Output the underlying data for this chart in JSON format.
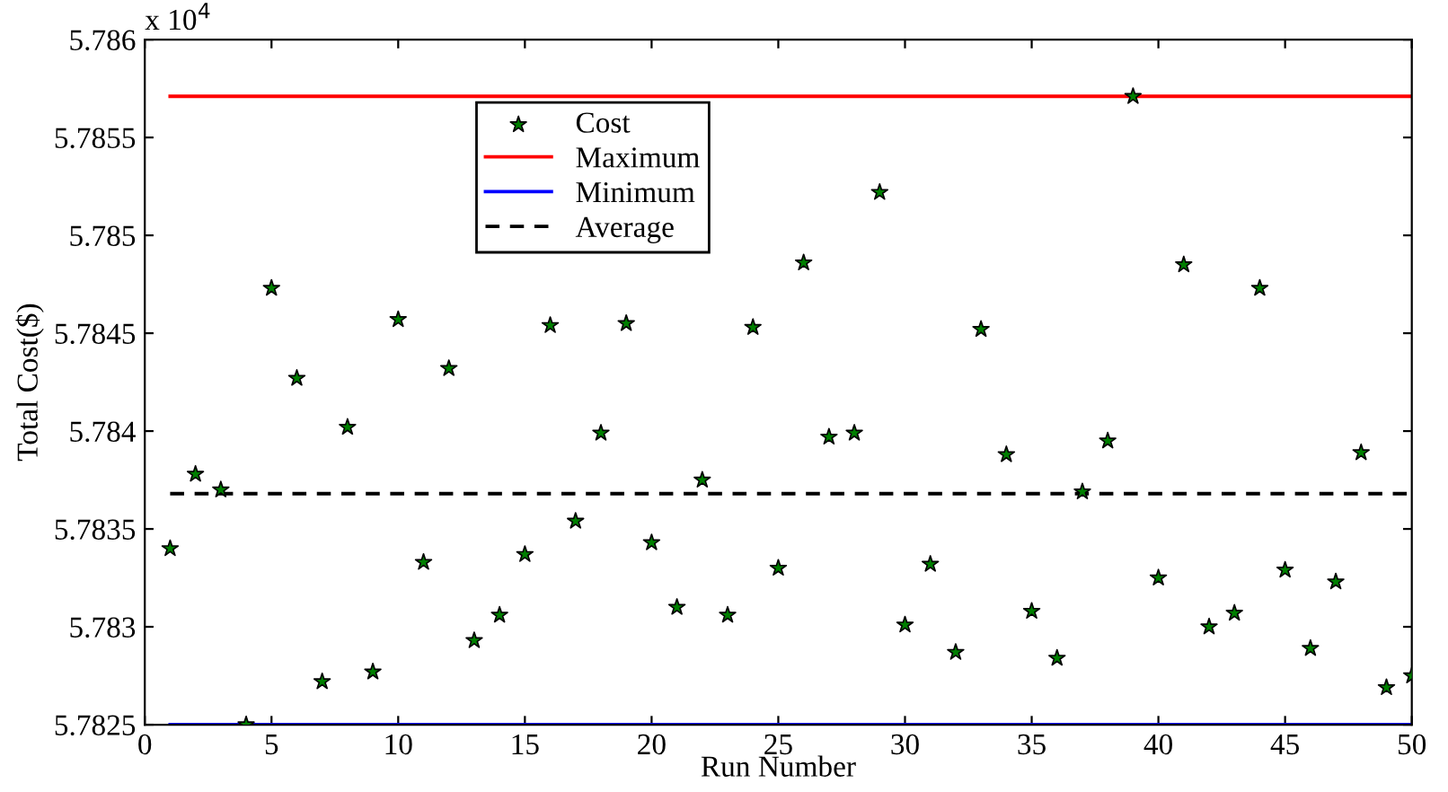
{
  "chart_data": {
    "type": "scatter",
    "xlabel": "Run Number",
    "ylabel": "Total Cost($)",
    "annotations": [
      "x 10$^{4}$"
    ],
    "xlim": [
      0,
      50
    ],
    "xticks": [
      0,
      5,
      10,
      15,
      20,
      25,
      30,
      35,
      40,
      45,
      50
    ],
    "ylim": [
      5.7825,
      5.786
    ],
    "yticks": [
      {
        "value": 5.7825,
        "label": "5.7825"
      },
      {
        "value": 5.783,
        "label": "5.783"
      },
      {
        "value": 5.7835,
        "label": "5.7835"
      },
      {
        "value": 5.784,
        "label": "5.784"
      },
      {
        "value": 5.7845,
        "label": "5.7845"
      },
      {
        "value": 5.785,
        "label": "5.785"
      },
      {
        "value": 5.7855,
        "label": "5.7855"
      },
      {
        "value": 5.786,
        "label": "5.786"
      }
    ],
    "grid": false,
    "legend": "top left",
    "series": [
      {
        "name": "Cost",
        "marker": "star",
        "color": "#007f00",
        "x": [
          1,
          2,
          3,
          4,
          5,
          6,
          7,
          8,
          9,
          10,
          11,
          12,
          13,
          14,
          15,
          16,
          17,
          18,
          19,
          20,
          21,
          22,
          23,
          24,
          25,
          26,
          27,
          28,
          29,
          30,
          31,
          32,
          33,
          34,
          35,
          36,
          37,
          38,
          39,
          40,
          41,
          42,
          43,
          44,
          45,
          46,
          47,
          48,
          49,
          50
        ],
        "values": [
          5.7834,
          5.78378,
          5.7837,
          5.7825,
          5.78473,
          5.78427,
          5.78272,
          5.78402,
          5.78277,
          5.78457,
          5.78333,
          5.78432,
          5.78293,
          5.78306,
          5.78337,
          5.78454,
          5.78354,
          5.78399,
          5.78455,
          5.78343,
          5.7831,
          5.78375,
          5.78306,
          5.78453,
          5.7833,
          5.78486,
          5.78397,
          5.78399,
          5.78522,
          5.78301,
          5.78332,
          5.78287,
          5.78452,
          5.78388,
          5.78308,
          5.78284,
          5.78369,
          5.78395,
          5.78571,
          5.78325,
          5.78485,
          5.783,
          5.78307,
          5.78473,
          5.78329,
          5.78289,
          5.78323,
          5.78389,
          5.78269,
          5.78275
        ]
      },
      {
        "name": "Maximum",
        "type": "line",
        "line_style": "solid",
        "color": "#ff0000",
        "x": [
          1,
          50
        ],
        "values": [
          5.78571,
          5.78571
        ]
      },
      {
        "name": "Minimum",
        "type": "line",
        "line_style": "solid",
        "color": "#0000ff",
        "x": [
          1,
          50
        ],
        "values": [
          5.7825,
          5.7825
        ]
      },
      {
        "name": "Average",
        "type": "line",
        "line_style": "dashed",
        "color": "#000000",
        "x": [
          1,
          50
        ],
        "values": [
          5.78368,
          5.78368
        ]
      }
    ]
  }
}
